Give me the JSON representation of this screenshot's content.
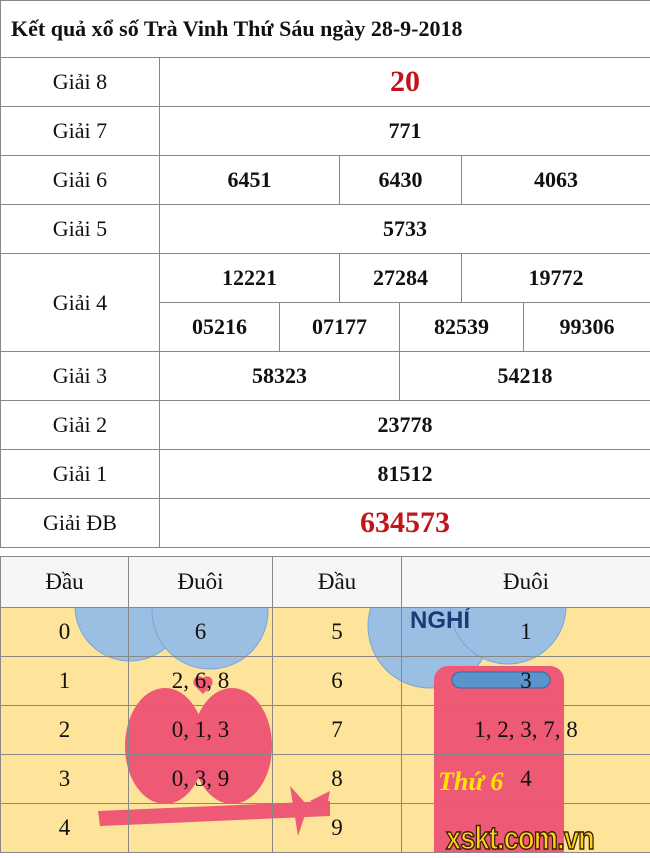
{
  "title": "Kết quả xổ số Trà Vinh Thứ Sáu ngày 28-9-2018",
  "prizes": [
    {
      "label": "Giải 8",
      "values": [
        "20"
      ]
    },
    {
      "label": "Giải 7",
      "values": [
        "771"
      ]
    },
    {
      "label": "Giải 6",
      "values": [
        "6451",
        "6430",
        "4063"
      ]
    },
    {
      "label": "Giải 5",
      "values": [
        "5733"
      ]
    },
    {
      "label": "Giải 4",
      "values": [
        "12221",
        "27284",
        "19772",
        "05216",
        "07177",
        "82539",
        "99306"
      ]
    },
    {
      "label": "Giải 3",
      "values": [
        "58323",
        "54218"
      ]
    },
    {
      "label": "Giải 2",
      "values": [
        "23778"
      ]
    },
    {
      "label": "Giải 1",
      "values": [
        "81512"
      ]
    },
    {
      "label": "Giải ĐB",
      "values": [
        "634573"
      ]
    }
  ],
  "loto": {
    "headers": [
      "Đầu",
      "Đuôi",
      "Đầu",
      "Đuôi"
    ],
    "rows": [
      [
        "0",
        "6",
        "5",
        "1"
      ],
      [
        "1",
        "2, 6, 8",
        "6",
        "3"
      ],
      [
        "2",
        "0, 1, 3",
        "7",
        "1, 2, 3, 7, 8"
      ],
      [
        "3",
        "0, 3, 9",
        "8",
        "4"
      ],
      [
        "4",
        "",
        "9",
        ""
      ]
    ]
  },
  "decoration": {
    "sign_text": "NGHỈ",
    "card_text": "Thứ 6"
  },
  "watermark": "xskt.com.vn",
  "colors": {
    "highlight": "#c0151b",
    "loto_bg": "#fde49a"
  }
}
